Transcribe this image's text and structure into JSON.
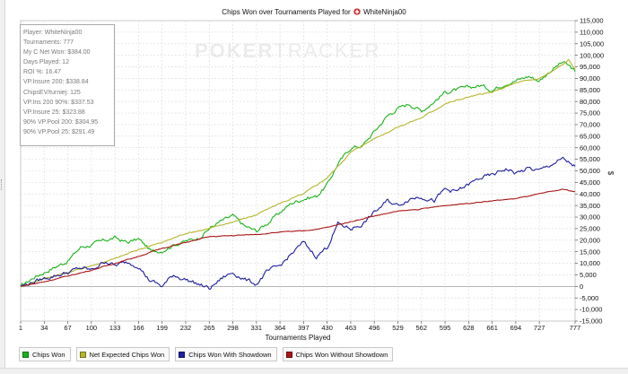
{
  "chart_title": {
    "prefix": "Chips Won over Tournaments Played for",
    "player": "WhiteNinja00"
  },
  "watermark": {
    "part1": "POKER",
    "part2": "TRACKER"
  },
  "stats": [
    "Player: WhiteNinja00",
    "Tournaments: 777",
    "My C Net Won: $384.00",
    "Days Played: 12",
    "ROI %: 16.47",
    "VP.Insure 200: $338.84",
    "ChipsEV/turniej: 125",
    "VP.Ins 200 90%: $337.53",
    "VP.Insure 25: $323.88",
    "90% VP.Pool 200: $304.95",
    "90% VP.Pool 25: $291.49"
  ],
  "legend": [
    {
      "label": "Chips Won",
      "color": "#19b319"
    },
    {
      "label": "Net Expected Chips Won",
      "color": "#b5b52a"
    },
    {
      "label": "Chips Won With Showdown",
      "color": "#1e1ea0"
    },
    {
      "label": "Chips Won Without Showdown",
      "color": "#aa1515"
    }
  ],
  "chart_data": {
    "type": "line",
    "title": "Chips Won over Tournaments Played for WhiteNinja00",
    "xlabel": "Tournaments Played",
    "ylabel": "$",
    "xlim": [
      1,
      777
    ],
    "ylim": [
      -15000,
      115000
    ],
    "x_ticks": [
      1,
      34,
      67,
      100,
      133,
      166,
      199,
      232,
      265,
      298,
      331,
      364,
      397,
      430,
      463,
      496,
      529,
      562,
      595,
      628,
      661,
      694,
      727,
      777
    ],
    "y_ticks": [
      -15000,
      -10000,
      -5000,
      0,
      5000,
      10000,
      15000,
      20000,
      25000,
      30000,
      35000,
      40000,
      45000,
      50000,
      55000,
      60000,
      65000,
      70000,
      75000,
      80000,
      85000,
      90000,
      95000,
      100000,
      105000,
      110000,
      115000
    ],
    "y_tick_labels": [
      "-15,000",
      "-10,000",
      "-5,000",
      "0",
      "5,000",
      "10,000",
      "15,000",
      "20,000",
      "25,000",
      "30,000",
      "35,000",
      "40,000",
      "45,000",
      "50,000",
      "55,000",
      "60,000",
      "65,000",
      "70,000",
      "75,000",
      "80,000",
      "85,000",
      "90,000",
      "95,000",
      "100,000",
      "105,000",
      "110,000",
      "115,000"
    ],
    "grid": true,
    "legend_position": "bottom",
    "series": [
      {
        "name": "Chips Won",
        "color": "#19b319",
        "points": [
          [
            1,
            0
          ],
          [
            20,
            4000
          ],
          [
            40,
            7000
          ],
          [
            67,
            11000
          ],
          [
            85,
            17000
          ],
          [
            100,
            18000
          ],
          [
            120,
            20000
          ],
          [
            133,
            21000
          ],
          [
            150,
            19000
          ],
          [
            166,
            20500
          ],
          [
            185,
            15000
          ],
          [
            199,
            15500
          ],
          [
            215,
            18000
          ],
          [
            232,
            19500
          ],
          [
            250,
            21000
          ],
          [
            265,
            25000
          ],
          [
            280,
            28000
          ],
          [
            298,
            30500
          ],
          [
            315,
            26000
          ],
          [
            331,
            24000
          ],
          [
            345,
            27000
          ],
          [
            364,
            32000
          ],
          [
            380,
            36000
          ],
          [
            397,
            38000
          ],
          [
            415,
            39000
          ],
          [
            430,
            44000
          ],
          [
            445,
            53000
          ],
          [
            463,
            60000
          ],
          [
            480,
            61000
          ],
          [
            496,
            67000
          ],
          [
            515,
            74000
          ],
          [
            529,
            77000
          ],
          [
            545,
            79000
          ],
          [
            562,
            76000
          ],
          [
            580,
            80000
          ],
          [
            595,
            84000
          ],
          [
            610,
            85000
          ],
          [
            628,
            86000
          ],
          [
            645,
            87000
          ],
          [
            661,
            85000
          ],
          [
            680,
            88000
          ],
          [
            694,
            89000
          ],
          [
            712,
            91000
          ],
          [
            727,
            89000
          ],
          [
            745,
            94000
          ],
          [
            760,
            97000
          ],
          [
            770,
            95000
          ],
          [
            777,
            93000
          ]
        ]
      },
      {
        "name": "Net Expected Chips Won",
        "color": "#b5b52a",
        "points": [
          [
            1,
            0
          ],
          [
            20,
            2000
          ],
          [
            40,
            4000
          ],
          [
            67,
            6000
          ],
          [
            100,
            9000
          ],
          [
            133,
            12000
          ],
          [
            166,
            16000
          ],
          [
            199,
            19000
          ],
          [
            232,
            23000
          ],
          [
            265,
            25000
          ],
          [
            298,
            28000
          ],
          [
            331,
            31000
          ],
          [
            364,
            36000
          ],
          [
            397,
            40000
          ],
          [
            430,
            47000
          ],
          [
            463,
            58000
          ],
          [
            496,
            64000
          ],
          [
            529,
            69000
          ],
          [
            562,
            73000
          ],
          [
            595,
            79000
          ],
          [
            628,
            82000
          ],
          [
            661,
            84000
          ],
          [
            694,
            88000
          ],
          [
            727,
            90000
          ],
          [
            745,
            93000
          ],
          [
            760,
            96000
          ],
          [
            768,
            98000
          ],
          [
            777,
            94000
          ]
        ]
      },
      {
        "name": "Chips Won With Showdown",
        "color": "#1e1ea0",
        "points": [
          [
            1,
            0
          ],
          [
            20,
            2000
          ],
          [
            40,
            4000
          ],
          [
            67,
            6000
          ],
          [
            85,
            8000
          ],
          [
            100,
            7000
          ],
          [
            120,
            11000
          ],
          [
            133,
            9000
          ],
          [
            150,
            10500
          ],
          [
            166,
            9000
          ],
          [
            180,
            3000
          ],
          [
            199,
            0
          ],
          [
            215,
            5000
          ],
          [
            232,
            3000
          ],
          [
            250,
            1000
          ],
          [
            265,
            -1000
          ],
          [
            285,
            4000
          ],
          [
            298,
            6000
          ],
          [
            315,
            3000
          ],
          [
            331,
            1000
          ],
          [
            345,
            6000
          ],
          [
            364,
            9000
          ],
          [
            380,
            14000
          ],
          [
            397,
            19000
          ],
          [
            415,
            13000
          ],
          [
            430,
            17000
          ],
          [
            445,
            27000
          ],
          [
            463,
            25000
          ],
          [
            480,
            27000
          ],
          [
            496,
            32000
          ],
          [
            515,
            37000
          ],
          [
            529,
            35000
          ],
          [
            545,
            38000
          ],
          [
            562,
            39000
          ],
          [
            580,
            37000
          ],
          [
            595,
            42000
          ],
          [
            610,
            41000
          ],
          [
            628,
            44000
          ],
          [
            645,
            47000
          ],
          [
            661,
            48000
          ],
          [
            680,
            51000
          ],
          [
            694,
            49000
          ],
          [
            712,
            51000
          ],
          [
            727,
            50000
          ],
          [
            745,
            53000
          ],
          [
            760,
            55000
          ],
          [
            777,
            52000
          ]
        ]
      },
      {
        "name": "Chips Won Without Showdown",
        "color": "#aa1515",
        "points": [
          [
            1,
            0
          ],
          [
            34,
            2000
          ],
          [
            67,
            4500
          ],
          [
            100,
            7000
          ],
          [
            133,
            10000
          ],
          [
            166,
            13000
          ],
          [
            199,
            16500
          ],
          [
            232,
            19000
          ],
          [
            265,
            21500
          ],
          [
            298,
            22000
          ],
          [
            331,
            22500
          ],
          [
            364,
            23500
          ],
          [
            397,
            24000
          ],
          [
            430,
            25500
          ],
          [
            463,
            28000
          ],
          [
            496,
            30500
          ],
          [
            529,
            32500
          ],
          [
            562,
            33500
          ],
          [
            595,
            35000
          ],
          [
            628,
            36000
          ],
          [
            661,
            37000
          ],
          [
            694,
            38000
          ],
          [
            727,
            40000
          ],
          [
            760,
            42000
          ],
          [
            777,
            41000
          ]
        ]
      }
    ]
  }
}
